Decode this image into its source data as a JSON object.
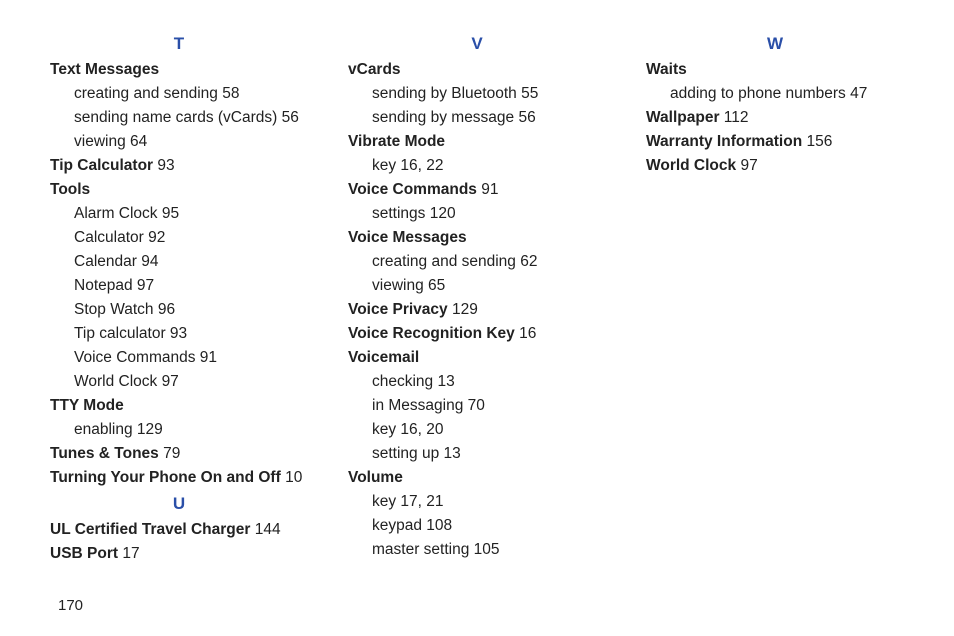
{
  "pageNumber": "170",
  "columns": [
    {
      "sections": [
        {
          "letter": "T",
          "entries": [
            {
              "type": "topic",
              "text": "Text Messages"
            },
            {
              "type": "sub",
              "text": "creating and sending 58"
            },
            {
              "type": "sub",
              "text": "sending name cards (vCards) 56"
            },
            {
              "type": "sub",
              "text": "viewing 64"
            },
            {
              "type": "topic",
              "text": "Tip Calculator",
              "page": "93"
            },
            {
              "type": "topic",
              "text": "Tools"
            },
            {
              "type": "sub",
              "text": "Alarm Clock 95"
            },
            {
              "type": "sub",
              "text": "Calculator 92"
            },
            {
              "type": "sub",
              "text": "Calendar 94"
            },
            {
              "type": "sub",
              "text": "Notepad 97"
            },
            {
              "type": "sub",
              "text": "Stop Watch 96"
            },
            {
              "type": "sub",
              "text": "Tip calculator 93"
            },
            {
              "type": "sub",
              "text": "Voice Commands 91"
            },
            {
              "type": "sub",
              "text": "World Clock 97"
            },
            {
              "type": "topic",
              "text": "TTY Mode"
            },
            {
              "type": "sub",
              "text": "enabling 129"
            },
            {
              "type": "topic",
              "text": "Tunes & Tones",
              "page": "79"
            },
            {
              "type": "topic",
              "text": "Turning Your Phone On and Off",
              "page": "10"
            }
          ]
        },
        {
          "letter": "U",
          "entries": [
            {
              "type": "topic",
              "text": "UL Certified Travel Charger",
              "page": "144"
            },
            {
              "type": "topic",
              "text": "USB Port",
              "page": "17"
            }
          ]
        }
      ]
    },
    {
      "sections": [
        {
          "letter": "V",
          "entries": [
            {
              "type": "topic",
              "text": "vCards"
            },
            {
              "type": "sub",
              "text": "sending by Bluetooth 55"
            },
            {
              "type": "sub",
              "text": "sending by message 56"
            },
            {
              "type": "topic",
              "text": "Vibrate Mode"
            },
            {
              "type": "sub",
              "text": "key 16, 22"
            },
            {
              "type": "topic",
              "text": "Voice Commands",
              "page": "91"
            },
            {
              "type": "sub",
              "text": "settings 120"
            },
            {
              "type": "topic",
              "text": "Voice Messages"
            },
            {
              "type": "sub",
              "text": "creating and sending 62"
            },
            {
              "type": "sub",
              "text": "viewing 65"
            },
            {
              "type": "topic",
              "text": "Voice Privacy",
              "page": "129"
            },
            {
              "type": "topic",
              "text": "Voice Recognition Key",
              "page": "16"
            },
            {
              "type": "topic",
              "text": "Voicemail"
            },
            {
              "type": "sub",
              "text": "checking 13"
            },
            {
              "type": "sub",
              "text": "in Messaging 70"
            },
            {
              "type": "sub",
              "text": "key 16, 20"
            },
            {
              "type": "sub",
              "text": "setting up 13"
            },
            {
              "type": "topic",
              "text": "Volume"
            },
            {
              "type": "sub",
              "text": "key 17, 21"
            },
            {
              "type": "sub",
              "text": "keypad 108"
            },
            {
              "type": "sub",
              "text": "master setting 105"
            }
          ]
        }
      ]
    },
    {
      "sections": [
        {
          "letter": "W",
          "entries": [
            {
              "type": "topic",
              "text": "Waits"
            },
            {
              "type": "sub",
              "text": "adding to phone numbers 47"
            },
            {
              "type": "topic",
              "text": "Wallpaper",
              "page": "112"
            },
            {
              "type": "topic",
              "text": "Warranty Information",
              "page": "156"
            },
            {
              "type": "topic",
              "text": "World Clock",
              "page": "97"
            }
          ]
        }
      ]
    }
  ]
}
